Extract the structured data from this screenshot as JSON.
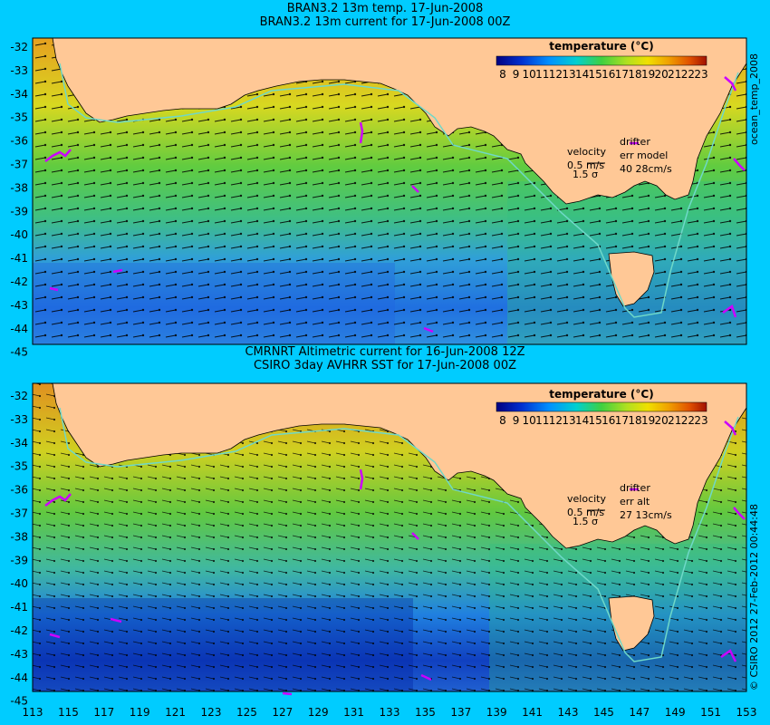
{
  "panels": [
    {
      "id": "top",
      "title_line1": "BRAN3.2 13m temp. 17-Jun-2008",
      "title_line2": "BRAN3.2 13m current for 17-Jun-2008 00Z",
      "legend": {
        "title": "temperature (°C)",
        "ticks": [
          "8",
          "9",
          "10",
          "11",
          "12",
          "13",
          "14",
          "15",
          "16",
          "17",
          "18",
          "19",
          "20",
          "21",
          "22",
          "23"
        ]
      },
      "velocity_label": "velocity",
      "velocity_scale": "0.5 m/s",
      "velocity_scale2": "1.5 σ",
      "drifter_label": "drifter",
      "err_label": "err model",
      "err_value": "40 28cm/s"
    },
    {
      "id": "bottom",
      "title_line1": "CMRNRT Altimetric current for 16-Jun-2008 12Z",
      "title_line2": "CSIRO 3day AVHRR SST for 17-Jun-2008 00Z",
      "legend": {
        "title": "temperature (°C)",
        "ticks": [
          "8",
          "9",
          "10",
          "11",
          "12",
          "13",
          "14",
          "15",
          "16",
          "17",
          "18",
          "19",
          "20",
          "21",
          "22",
          "23"
        ]
      },
      "velocity_label": "velocity",
      "velocity_scale": "0.5 m/s",
      "velocity_scale2": "1.5 σ",
      "drifter_label": "drifter",
      "err_label": "err alt",
      "err_value": "27 13cm/s"
    }
  ],
  "y_ticks": [
    "-32",
    "-33",
    "-34",
    "-35",
    "-36",
    "-37",
    "-38",
    "-39",
    "-40",
    "-41",
    "-42",
    "-43",
    "-44",
    "-45"
  ],
  "x_ticks": [
    "113",
    "115",
    "117",
    "119",
    "121",
    "123",
    "125",
    "127",
    "129",
    "131",
    "133",
    "135",
    "137",
    "139",
    "141",
    "143",
    "145",
    "147",
    "149",
    "151",
    "153"
  ],
  "side_label_top": "ocean_temp_2008",
  "side_label_bottom": "© CSIRO 2012  27-Feb-2012 00:44:48",
  "colors": {
    "background": "#00ccff",
    "land": "#ffc896",
    "arrow": "#000000",
    "drifter": "#cc00ff",
    "shelf": "#6fd8c8"
  }
}
